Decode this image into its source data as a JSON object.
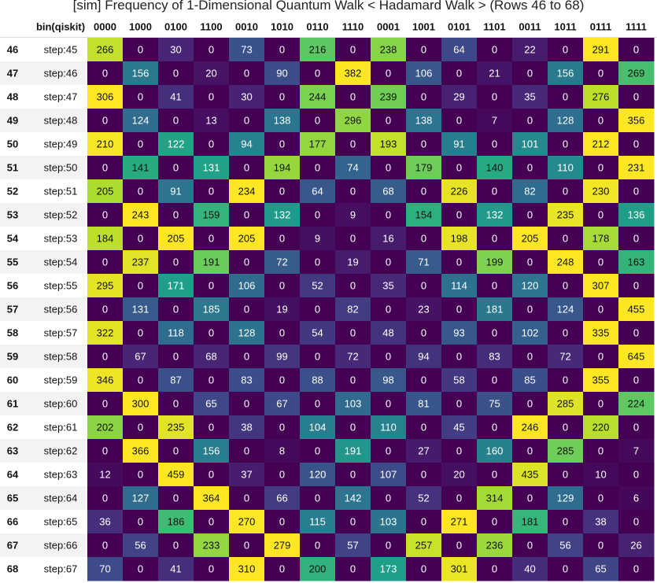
{
  "chart_data": {
    "type": "heatmap",
    "title": "[sim] Frequency of 1-Dimensional Quantum Walk < Hadamard Walk > (Rows 46 to 68)",
    "index_header": "",
    "label_header": "bin(qiskit)",
    "columns": [
      "0000",
      "1000",
      "0100",
      "1100",
      "0010",
      "1010",
      "0110",
      "1110",
      "0001",
      "1001",
      "0101",
      "1101",
      "0011",
      "1011",
      "0111",
      "1111"
    ],
    "row_index": [
      46,
      47,
      48,
      49,
      50,
      51,
      52,
      53,
      54,
      55,
      56,
      57,
      58,
      59,
      60,
      61,
      62,
      63,
      64,
      65,
      66,
      67,
      68
    ],
    "row_labels": [
      "step:45",
      "step:46",
      "step:47",
      "step:48",
      "step:49",
      "step:50",
      "step:51",
      "step:52",
      "step:53",
      "step:54",
      "step:55",
      "step:56",
      "step:57",
      "step:58",
      "step:59",
      "step:60",
      "step:61",
      "step:62",
      "step:63",
      "step:64",
      "step:65",
      "step:66",
      "step:67"
    ],
    "values": [
      [
        266,
        0,
        30,
        0,
        73,
        0,
        216,
        0,
        238,
        0,
        64,
        0,
        22,
        0,
        291,
        0
      ],
      [
        0,
        156,
        0,
        20,
        0,
        90,
        0,
        382,
        0,
        106,
        0,
        21,
        0,
        156,
        0,
        269
      ],
      [
        306,
        0,
        41,
        0,
        30,
        0,
        244,
        0,
        239,
        0,
        29,
        0,
        35,
        0,
        276,
        0
      ],
      [
        0,
        124,
        0,
        13,
        0,
        138,
        0,
        296,
        0,
        138,
        0,
        7,
        0,
        128,
        0,
        356
      ],
      [
        210,
        0,
        122,
        0,
        94,
        0,
        177,
        0,
        193,
        0,
        91,
        0,
        101,
        0,
        212,
        0
      ],
      [
        0,
        141,
        0,
        131,
        0,
        194,
        0,
        74,
        0,
        179,
        0,
        140,
        0,
        110,
        0,
        231
      ],
      [
        205,
        0,
        91,
        0,
        234,
        0,
        64,
        0,
        68,
        0,
        226,
        0,
        82,
        0,
        230,
        0
      ],
      [
        0,
        243,
        0,
        159,
        0,
        132,
        0,
        9,
        0,
        154,
        0,
        132,
        0,
        235,
        0,
        136
      ],
      [
        184,
        0,
        205,
        0,
        205,
        0,
        9,
        0,
        16,
        0,
        198,
        0,
        205,
        0,
        178,
        0
      ],
      [
        0,
        237,
        0,
        191,
        0,
        72,
        0,
        19,
        0,
        71,
        0,
        199,
        0,
        248,
        0,
        163
      ],
      [
        295,
        0,
        171,
        0,
        106,
        0,
        52,
        0,
        35,
        0,
        114,
        0,
        120,
        0,
        307,
        0
      ],
      [
        0,
        131,
        0,
        185,
        0,
        19,
        0,
        82,
        0,
        23,
        0,
        181,
        0,
        124,
        0,
        455
      ],
      [
        322,
        0,
        118,
        0,
        128,
        0,
        54,
        0,
        48,
        0,
        93,
        0,
        102,
        0,
        335,
        0
      ],
      [
        0,
        67,
        0,
        68,
        0,
        99,
        0,
        72,
        0,
        94,
        0,
        83,
        0,
        72,
        0,
        645
      ],
      [
        346,
        0,
        87,
        0,
        83,
        0,
        88,
        0,
        98,
        0,
        58,
        0,
        85,
        0,
        355,
        0
      ],
      [
        0,
        300,
        0,
        65,
        0,
        67,
        0,
        103,
        0,
        81,
        0,
        75,
        0,
        285,
        0,
        224
      ],
      [
        202,
        0,
        235,
        0,
        38,
        0,
        104,
        0,
        110,
        0,
        45,
        0,
        246,
        0,
        220,
        0
      ],
      [
        0,
        366,
        0,
        156,
        0,
        8,
        0,
        191,
        0,
        27,
        0,
        160,
        0,
        285,
        0,
        7
      ],
      [
        12,
        0,
        459,
        0,
        37,
        0,
        120,
        0,
        107,
        0,
        20,
        0,
        435,
        0,
        10,
        0
      ],
      [
        0,
        127,
        0,
        364,
        0,
        66,
        0,
        142,
        0,
        52,
        0,
        314,
        0,
        129,
        0,
        6
      ],
      [
        36,
        0,
        186,
        0,
        270,
        0,
        115,
        0,
        103,
        0,
        271,
        0,
        181,
        0,
        38,
        0
      ],
      [
        0,
        56,
        0,
        233,
        0,
        279,
        0,
        57,
        0,
        257,
        0,
        236,
        0,
        56,
        0,
        26
      ],
      [
        70,
        0,
        41,
        0,
        310,
        0,
        200,
        0,
        173,
        0,
        301,
        0,
        40,
        0,
        65,
        0
      ]
    ],
    "colormap": "viridis",
    "color_range_by_row": true,
    "colors": {
      "viridis": [
        "#440154",
        "#482878",
        "#3e4989",
        "#31688e",
        "#26828e",
        "#1f9e89",
        "#35b779",
        "#6ece58",
        "#b5de2b",
        "#fde725"
      ],
      "text_dark": "#111111",
      "text_light": "#ffffff",
      "row_band": "#f3f3f3"
    }
  }
}
